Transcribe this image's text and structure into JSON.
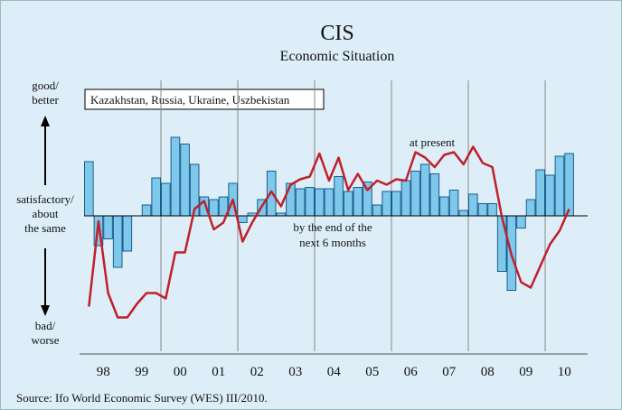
{
  "chart_data": {
    "type": "bar-line",
    "title": "CIS",
    "subtitle": "Economic Situation",
    "legend_box": "Kazakhstan, Russia, Ukraine, Uszbekistan",
    "y_labels": [
      [
        "good/",
        "better"
      ],
      [
        "satisfactory/",
        "about",
        "the same"
      ],
      [
        "bad/",
        "worse"
      ]
    ],
    "annotations": [
      [
        "at present"
      ],
      [
        "by the end of the",
        "next 6 months"
      ]
    ],
    "source": "Source: Ifo World Economic Survey (WES) III/2010.",
    "categories": [
      "98",
      null,
      null,
      null,
      "99",
      null,
      null,
      null,
      "00",
      null,
      null,
      null,
      "01",
      null,
      null,
      null,
      "02",
      null,
      null,
      null,
      "03",
      null,
      null,
      null,
      "04",
      null,
      null,
      null,
      "05",
      null,
      null,
      null,
      "06",
      null,
      null,
      null,
      "07",
      null,
      null,
      null,
      "08",
      null,
      null,
      null,
      "09",
      null,
      null,
      null,
      "10",
      null,
      null
    ],
    "ylim": [
      -100,
      100
    ],
    "series": [
      {
        "name": "at present",
        "kind": "bar",
        "color": "#7ec8ec",
        "values": [
          40,
          -22,
          -17,
          -38,
          -26,
          0,
          8,
          28,
          24,
          58,
          53,
          38,
          14,
          12,
          14,
          24,
          -5,
          2,
          12,
          33,
          2,
          24,
          20,
          21,
          20,
          20,
          29,
          18,
          21,
          25,
          8,
          18,
          18,
          26,
          33,
          38,
          31,
          14,
          19,
          4,
          16,
          9,
          9,
          -41,
          -55,
          -9,
          12,
          34,
          30,
          44,
          46
        ]
      },
      {
        "name": "by the end of the next 6 months",
        "kind": "line",
        "color": "#c0202a",
        "values": [
          -67,
          -4,
          -57,
          -75,
          -75,
          -65,
          -57,
          -57,
          -61,
          -27,
          -27,
          5,
          11,
          -10,
          -5,
          12,
          -19,
          -5,
          7,
          18,
          7,
          23,
          27,
          29,
          46,
          26,
          43,
          19,
          31,
          19,
          26,
          23,
          27,
          26,
          47,
          43,
          36,
          45,
          47,
          38,
          51,
          39,
          36,
          -1,
          -29,
          -49,
          -53,
          -37,
          -21,
          -11,
          5
        ]
      }
    ]
  }
}
